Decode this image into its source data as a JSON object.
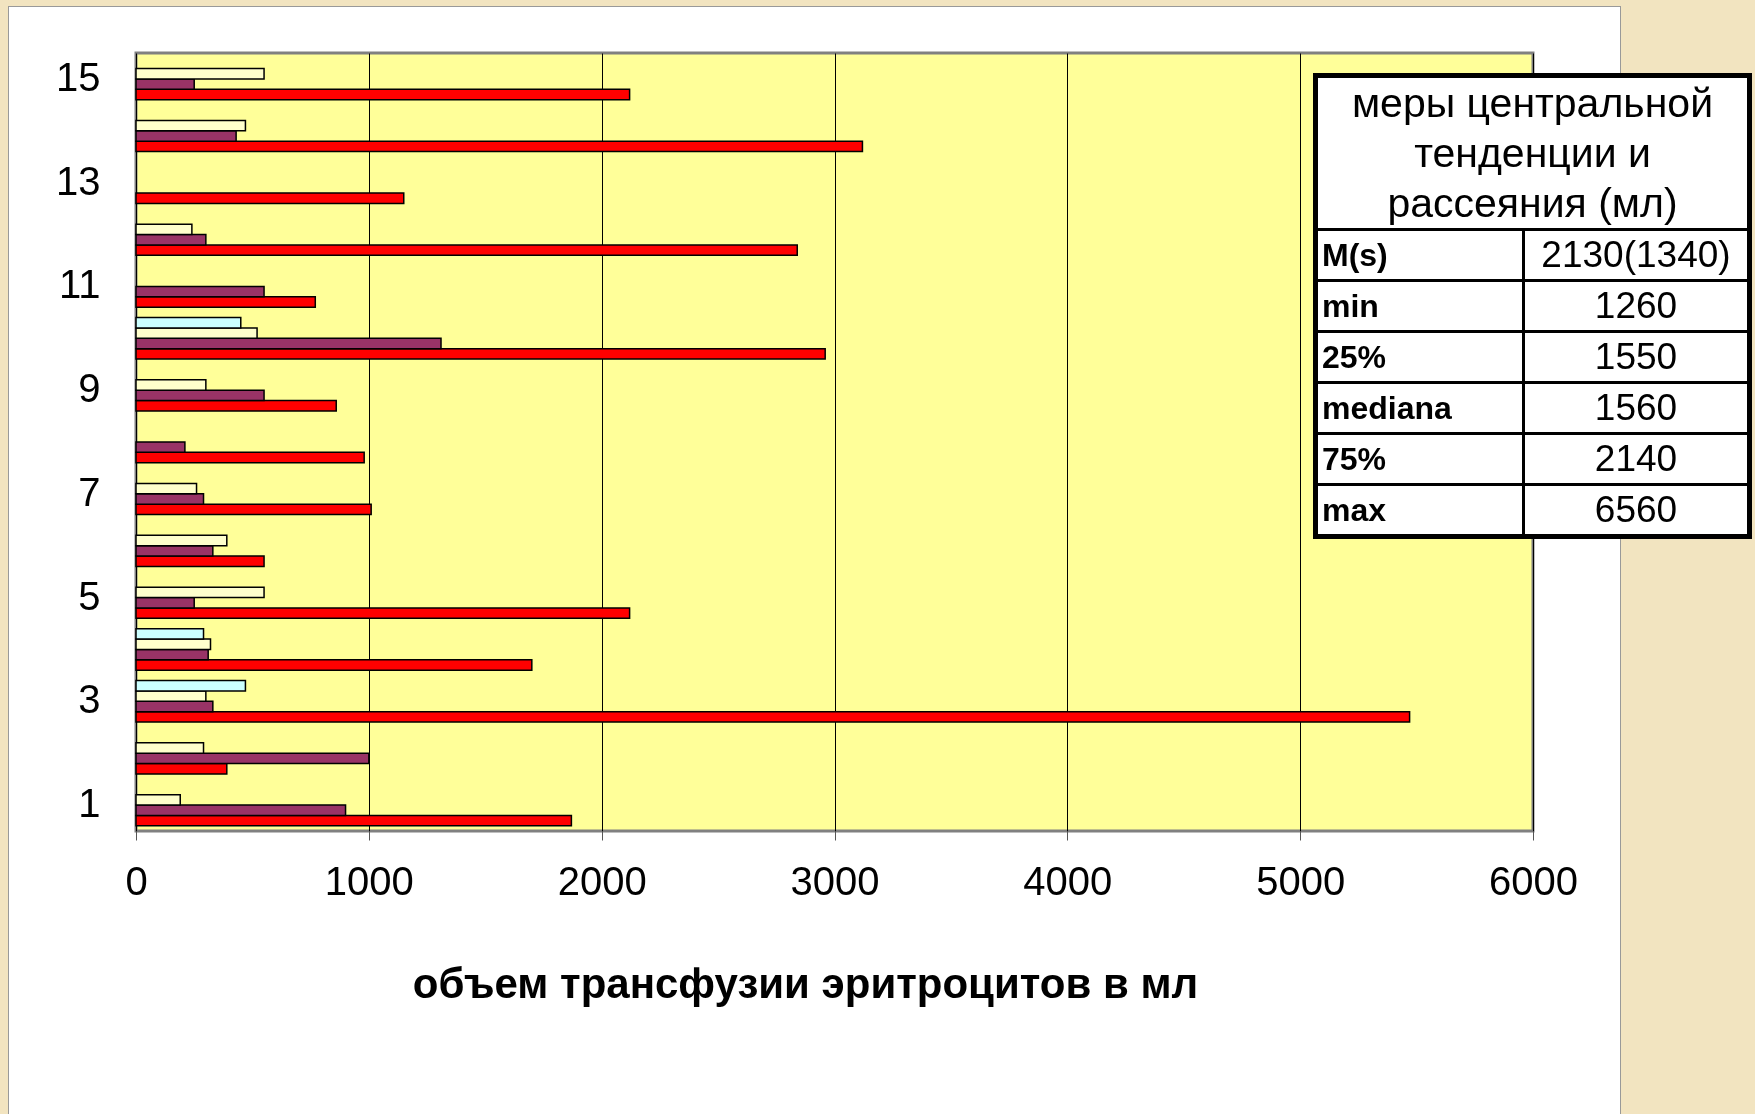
{
  "chart_data": {
    "type": "bar",
    "orientation": "horizontal",
    "xlabel": "объем трансфузии эритроцитов в мл",
    "categories": [
      "15",
      null,
      "13",
      null,
      "11",
      null,
      "9",
      null,
      "7",
      null,
      "5",
      null,
      "3",
      null,
      "1"
    ],
    "series": [
      {
        "color": "#ff0000",
        "values": [
          2120,
          3120,
          1150,
          2840,
          770,
          2960,
          860,
          980,
          1010,
          550,
          2120,
          1700,
          5470,
          390,
          1870
        ]
      },
      {
        "color": "#993366",
        "values": [
          250,
          430,
          null,
          300,
          550,
          1310,
          550,
          210,
          290,
          330,
          250,
          310,
          330,
          1000,
          900
        ]
      },
      {
        "color": "#ffffcc",
        "values": [
          550,
          470,
          null,
          240,
          null,
          520,
          300,
          null,
          260,
          390,
          550,
          320,
          300,
          290,
          190
        ]
      },
      {
        "color": "#ccffff",
        "values": [
          null,
          null,
          null,
          null,
          null,
          450,
          null,
          null,
          null,
          null,
          null,
          290,
          470,
          null,
          null
        ]
      }
    ],
    "xlim": [
      0,
      6000
    ],
    "xticks": [
      0,
      1000,
      2000,
      3000,
      4000,
      5000,
      6000
    ],
    "grid": "x",
    "annotations": [
      "меры центральной тенденции и рассеяния (мл)",
      "M(s)",
      "2130(1340)",
      "min",
      "1260",
      "25%",
      "1550",
      "mediana",
      "1560",
      "75%",
      "2140",
      "max",
      "6560"
    ]
  }
}
